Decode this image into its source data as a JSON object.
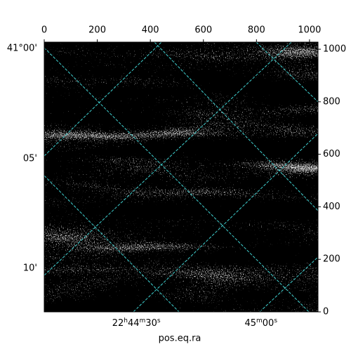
{
  "chart_data": {
    "type": "image",
    "xlabel": "pos.eq.ra",
    "xlim": [
      0,
      1032
    ],
    "ylim": [
      0,
      1027
    ],
    "xticks": [
      0,
      200,
      400,
      600,
      800,
      1000
    ],
    "yticks": [
      0,
      200,
      400,
      600,
      800,
      1000
    ],
    "wcs_xticks": [
      {
        "value": 347,
        "label": "22h44m30s"
      },
      {
        "value": 817,
        "label": "45m00s"
      }
    ],
    "wcs_yticks": [
      {
        "value": 1003,
        "label": "41°00'"
      },
      {
        "value": 583,
        "label": "05'"
      },
      {
        "value": 166,
        "label": "10'"
      }
    ],
    "grid_color": "#3fd0d0"
  }
}
